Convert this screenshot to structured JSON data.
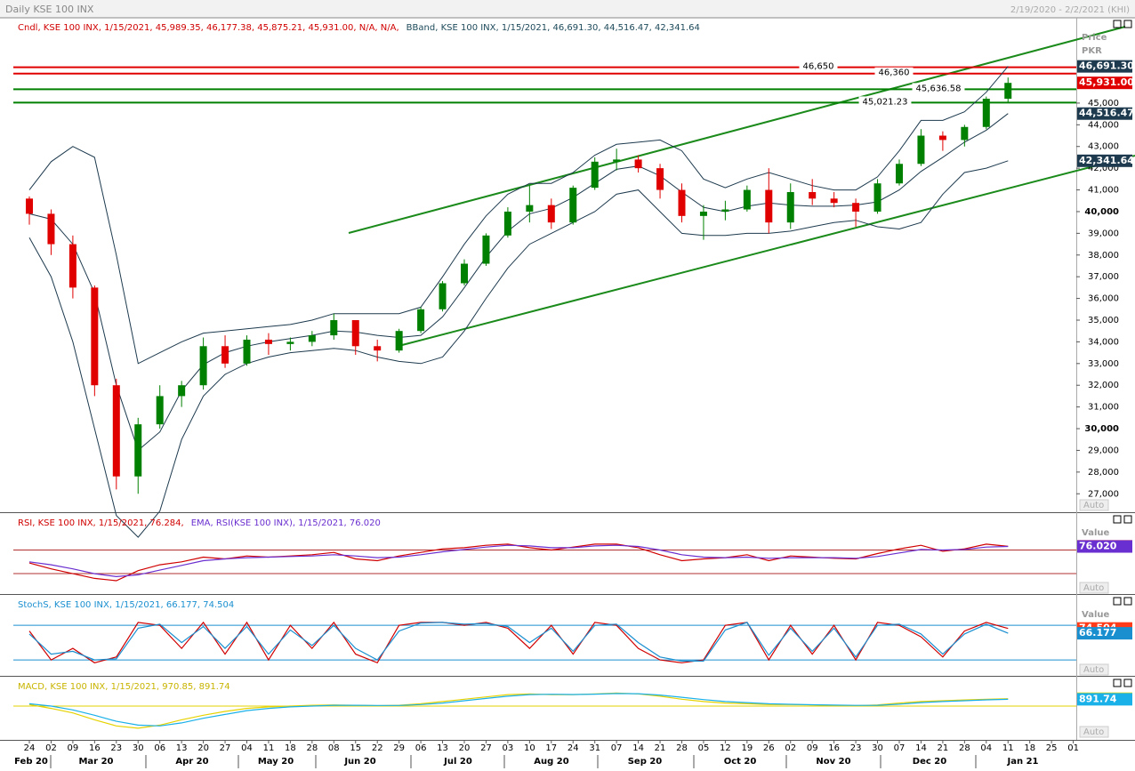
{
  "header": {
    "title": "Daily KSE 100 INX",
    "range": "2/19/2020 - 2/2/2021 (KHI)"
  },
  "x_axis": {
    "day_labels": [
      "24",
      "02",
      "09",
      "16",
      "23",
      "30",
      "06",
      "13",
      "20",
      "27",
      "04",
      "11",
      "18",
      "28",
      "08",
      "15",
      "22",
      "29",
      "06",
      "13",
      "20",
      "27",
      "03",
      "10",
      "17",
      "24",
      "31",
      "07",
      "14",
      "21",
      "28",
      "05",
      "12",
      "19",
      "26",
      "02",
      "09",
      "16",
      "23",
      "30",
      "07",
      "14",
      "21",
      "28",
      "04",
      "11",
      "18",
      "25",
      "01"
    ],
    "month_labels": [
      "Feb 20",
      "Mar 20",
      "Apr 20",
      "May 20",
      "Jun 20",
      "Jul 20",
      "Aug 20",
      "Sep 20",
      "Oct 20",
      "Nov 20",
      "Dec 20",
      "Jan 21"
    ]
  },
  "chart_data": [
    {
      "type": "candlestick",
      "legend": [
        {
          "text": "Cndl, KSE 100 INX, 1/15/2021, 45,989.35, 46,177.38, 45,875.21, 45,931.00, N/A, N/A,",
          "color": "#d00000"
        },
        {
          "text": "BBand, KSE 100 INX, 1/15/2021, 46,691.30, 44,516.47, 42,341.64",
          "color": "#1d4a5a"
        }
      ],
      "axis_label": [
        "Price",
        "PKR"
      ],
      "auto_label": "Auto",
      "up_color": "#008000",
      "down_color": "#e00000",
      "open": [
        40600,
        39900,
        38500,
        36500,
        32000,
        27800,
        30200,
        31500,
        32000,
        33800,
        33000,
        34100,
        33900,
        34000,
        34300,
        35000,
        33800,
        33600,
        34500,
        35500,
        36700,
        37600,
        38900,
        40000,
        40300,
        39500,
        41100,
        42300,
        42400,
        42000,
        41000,
        39800,
        40000,
        40100,
        41000,
        39500,
        40900,
        40600,
        40400,
        40000,
        41300,
        42200,
        43500,
        43300,
        43900,
        45200
      ],
      "high": [
        40700,
        40100,
        38900,
        36600,
        32300,
        30500,
        32000,
        32200,
        34200,
        34300,
        34300,
        34400,
        34200,
        34500,
        35300,
        35000,
        34100,
        34600,
        35600,
        36800,
        37800,
        39000,
        40200,
        41200,
        40600,
        41200,
        42500,
        42900,
        42600,
        42200,
        41300,
        40300,
        40500,
        41200,
        42000,
        41300,
        41500,
        40900,
        40600,
        41500,
        42400,
        43800,
        43700,
        44000,
        45300,
        46177.38
      ],
      "low": [
        39400,
        38000,
        36000,
        31500,
        27200,
        27000,
        30000,
        31000,
        31800,
        32800,
        32900,
        33400,
        33600,
        33800,
        34100,
        33400,
        33100,
        33500,
        34400,
        35400,
        36600,
        37500,
        38800,
        39500,
        39200,
        39400,
        41000,
        41900,
        41800,
        40600,
        39500,
        38700,
        39600,
        40000,
        39000,
        39200,
        40300,
        40200,
        39300,
        39900,
        41200,
        42100,
        42800,
        43000,
        43800,
        45000
      ],
      "close": [
        39900,
        38500,
        36500,
        32000,
        27800,
        30200,
        31500,
        32000,
        33800,
        33000,
        34100,
        33900,
        34000,
        34300,
        35000,
        33800,
        33600,
        34500,
        35500,
        36700,
        37600,
        38900,
        40000,
        40300,
        39500,
        41100,
        42300,
        42400,
        42000,
        41000,
        39800,
        40000,
        40100,
        41000,
        39500,
        40900,
        40600,
        40400,
        40000,
        41300,
        42200,
        43500,
        43300,
        43900,
        45200,
        45931
      ],
      "bands": {
        "color": "#1d3a4e",
        "upper": [
          41000,
          42300,
          43000,
          42500,
          38000,
          33000,
          33500,
          34000,
          34400,
          34500,
          34600,
          34700,
          34800,
          35000,
          35300,
          35300,
          35300,
          35300,
          35600,
          37000,
          38500,
          39800,
          40800,
          41300,
          41300,
          41800,
          42600,
          43100,
          43200,
          43300,
          42800,
          41500,
          41100,
          41500,
          41800,
          41500,
          41200,
          41000,
          41000,
          41600,
          42800,
          44200,
          44200,
          44600,
          45500,
          46691.3
        ],
        "middle": [
          39900,
          39650,
          38500,
          36250,
          32000,
          29000,
          29850,
          31750,
          32950,
          33500,
          33800,
          34000,
          34150,
          34300,
          34500,
          34450,
          34300,
          34200,
          34300,
          35150,
          36500,
          37900,
          39100,
          39900,
          40150,
          40650,
          41300,
          41950,
          42100,
          41650,
          40900,
          40200,
          40000,
          40250,
          40400,
          40300,
          40250,
          40250,
          40300,
          40450,
          41000,
          41850,
          42500,
          43200,
          43750,
          44516.47
        ],
        "lower": [
          38800,
          37000,
          34000,
          30000,
          26000,
          25000,
          26200,
          29500,
          31500,
          32500,
          33000,
          33300,
          33500,
          33600,
          33700,
          33600,
          33300,
          33100,
          33000,
          33300,
          34500,
          36000,
          37400,
          38500,
          39000,
          39500,
          40000,
          40800,
          41000,
          40000,
          39000,
          38900,
          38900,
          39000,
          39000,
          39100,
          39300,
          39500,
          39600,
          39300,
          39200,
          39500,
          40800,
          41800,
          42000,
          42341.64
        ]
      },
      "levels": [
        {
          "value": 46650,
          "label": "46,650",
          "color": "#e00000"
        },
        {
          "value": 46360,
          "label": "46,360",
          "color": "#e00000"
        },
        {
          "value": 45636.58,
          "label": "45,636.58",
          "color": "#008000"
        },
        {
          "value": 45021.23,
          "label": "45,021.23",
          "color": "#008000"
        }
      ],
      "tags": [
        {
          "value": 46691.3,
          "label": "46,691.30",
          "color": "#1d3a4e"
        },
        {
          "value": 45931,
          "label": "45,931.00",
          "color": "#e00000"
        },
        {
          "value": 44516.47,
          "label": "44,516.47",
          "color": "#1d3a4e"
        },
        {
          "value": 42341.64,
          "label": "42,341.64",
          "color": "#1d3a4e"
        }
      ],
      "ylim": [
        26150,
        48930
      ],
      "yticks": [
        {
          "value": 27000,
          "label": "27,000"
        },
        {
          "value": 28000,
          "label": "28,000"
        },
        {
          "value": 29000,
          "label": "29,000"
        },
        {
          "value": 30000,
          "label": "30,000"
        },
        {
          "value": 31000,
          "label": "31,000"
        },
        {
          "value": 32000,
          "label": "32,000"
        },
        {
          "value": 33000,
          "label": "33,000"
        },
        {
          "value": 34000,
          "label": "34,000"
        },
        {
          "value": 35000,
          "label": "35,000"
        },
        {
          "value": 36000,
          "label": "36,000"
        },
        {
          "value": 37000,
          "label": "37,000"
        },
        {
          "value": 38000,
          "label": "38,000"
        },
        {
          "value": 39000,
          "label": "39,000"
        },
        {
          "value": 40000,
          "label": "40,000"
        },
        {
          "value": 41000,
          "label": "41,000"
        },
        {
          "value": 42000,
          "label": "42,000"
        },
        {
          "value": 43000,
          "label": "43,000"
        },
        {
          "value": 44000,
          "label": "44,000"
        },
        {
          "value": 45000,
          "label": "45,000"
        }
      ]
    },
    {
      "type": "line",
      "value_label": "Value",
      "auto_label": "Auto",
      "legend": [
        {
          "text": "RSI, KSE 100 INX, 1/15/2021, 76.284,",
          "color": "#d00000"
        },
        {
          "text": "EMA, RSI(KSE 100 INX), 1/15/2021, 76.020",
          "color": "#6a2fd0"
        }
      ],
      "series": [
        {
          "color": "#d00000",
          "values": [
            48,
            38,
            30,
            22,
            18,
            35,
            45,
            50,
            58,
            55,
            60,
            58,
            60,
            62,
            66,
            55,
            52,
            60,
            66,
            72,
            74,
            78,
            80,
            74,
            70,
            75,
            80,
            80,
            74,
            62,
            52,
            55,
            57,
            62,
            52,
            60,
            58,
            56,
            55,
            64,
            72,
            78,
            68,
            72,
            80,
            76.284
          ]
        },
        {
          "color": "#6a2fd0",
          "values": [
            50,
            45,
            38,
            30,
            25,
            28,
            36,
            44,
            52,
            55,
            57,
            58,
            59,
            60,
            62,
            60,
            57,
            58,
            62,
            67,
            71,
            75,
            78,
            77,
            74,
            74,
            77,
            78,
            76,
            70,
            62,
            58,
            57,
            58,
            56,
            57,
            57,
            57,
            56,
            59,
            65,
            71,
            70,
            71,
            75,
            76.02
          ]
        }
      ],
      "levels": [
        70,
        30
      ],
      "level_color": "#b03030",
      "tags": [
        {
          "value": 76.284,
          "label": "76.284",
          "color": "#e00000"
        },
        {
          "value": 76.02,
          "label": "76.020",
          "color": "#6a2fd0"
        }
      ],
      "ylim": [
        15,
        110
      ]
    },
    {
      "type": "line",
      "value_label": "Value",
      "auto_label": "Auto",
      "legend": [
        {
          "text": "StochS, KSE 100 INX, 1/15/2021, 66.177, 74.504",
          "color": "#1a8fd0"
        }
      ],
      "series": [
        {
          "color": "#d00000",
          "values": [
            70,
            20,
            40,
            15,
            25,
            85,
            80,
            40,
            85,
            30,
            85,
            20,
            80,
            40,
            85,
            30,
            15,
            80,
            85,
            85,
            80,
            85,
            75,
            40,
            80,
            30,
            85,
            80,
            40,
            20,
            15,
            20,
            80,
            85,
            20,
            80,
            30,
            80,
            20,
            85,
            80,
            60,
            25,
            70,
            85,
            74.504
          ]
        },
        {
          "color": "#1a8fd0",
          "values": [
            65,
            30,
            35,
            20,
            22,
            75,
            82,
            50,
            78,
            40,
            78,
            30,
            72,
            45,
            80,
            40,
            20,
            70,
            84,
            85,
            82,
            83,
            78,
            50,
            75,
            35,
            80,
            82,
            50,
            25,
            18,
            18,
            72,
            85,
            28,
            75,
            35,
            75,
            25,
            80,
            82,
            65,
            30,
            65,
            82,
            66.177
          ]
        }
      ],
      "levels": [
        80,
        20
      ],
      "level_color": "#1a8fd0",
      "tags": [
        {
          "value": 74.504,
          "label": "74.504",
          "color": "#ff3b1a"
        },
        {
          "value": 66.177,
          "label": "66.177",
          "color": "#1a8fd0"
        }
      ],
      "ylim": [
        -3,
        108
      ]
    },
    {
      "type": "line",
      "auto_label": "Auto",
      "legend": [
        {
          "text": "MACD, KSE 100 INX, 1/15/2021, 970.85, 891.74",
          "color": "#c8b400"
        }
      ],
      "series": [
        {
          "color": "#e6d200",
          "values": [
            200,
            -300,
            -900,
            -1800,
            -2600,
            -2900,
            -2500,
            -1800,
            -1200,
            -700,
            -300,
            -100,
            0,
            100,
            150,
            100,
            50,
            100,
            300,
            600,
            900,
            1200,
            1500,
            1600,
            1500,
            1500,
            1600,
            1700,
            1600,
            1300,
            900,
            600,
            400,
            300,
            200,
            200,
            150,
            100,
            50,
            150,
            400,
            600,
            700,
            800,
            900,
            970.85
          ]
        },
        {
          "color": "#1ab0e8",
          "values": [
            300,
            0,
            -500,
            -1200,
            -2000,
            -2500,
            -2600,
            -2200,
            -1600,
            -1100,
            -600,
            -300,
            -100,
            0,
            100,
            100,
            80,
            80,
            200,
            400,
            700,
            1000,
            1300,
            1500,
            1550,
            1520,
            1560,
            1650,
            1620,
            1450,
            1150,
            850,
            600,
            450,
            300,
            230,
            180,
            130,
            90,
            110,
            250,
            450,
            600,
            700,
            820,
            891.74
          ]
        }
      ],
      "levels": [
        0
      ],
      "level_color": "#e6d200",
      "tags": [
        {
          "value": 970.85,
          "label": "970.85",
          "color": "#f0e000"
        },
        {
          "value": 891.74,
          "label": "891.74",
          "color": "#1ab0e8"
        }
      ],
      "ylim": [
        -4200,
        2800
      ]
    }
  ]
}
